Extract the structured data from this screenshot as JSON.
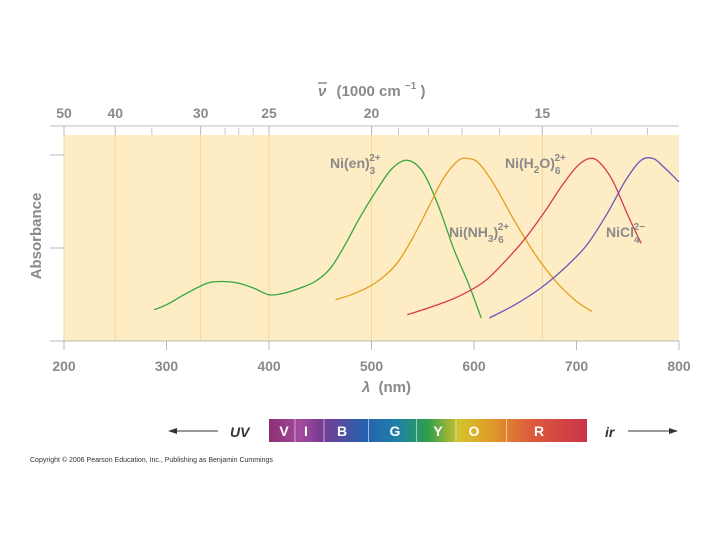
{
  "chart_data": {
    "type": "line",
    "ylabel": "Absorbance",
    "xlabel_lambda": "λ",
    "xlabel_unit": "(nm)",
    "xlim": [
      200,
      800
    ],
    "x_ticks": [
      "200",
      "300",
      "400",
      "500",
      "600",
      "700",
      "800"
    ],
    "top_axis": {
      "label_symbol": "ν",
      "label_prefix": "(1000 cm",
      "label_exp": "−1",
      "label_suffix": ")",
      "ticks": [
        {
          "wavenumber": 50,
          "label": "50"
        },
        {
          "wavenumber": 40,
          "label": "40"
        },
        {
          "wavenumber": 30,
          "label": "30"
        },
        {
          "wavenumber": 25,
          "label": "25"
        },
        {
          "wavenumber": 20,
          "label": "20"
        },
        {
          "wavenumber": 15,
          "label": "15"
        }
      ],
      "minor": [
        35,
        28,
        27,
        26,
        19,
        18,
        17,
        16,
        14,
        13
      ]
    },
    "series": [
      {
        "name": "Ni(en)3 2+",
        "base": "Ni(en)",
        "sub": "3",
        "sup": "2+",
        "color": "#33a843",
        "x": [
          288,
          300,
          320,
          340,
          355,
          370,
          385,
          400,
          415,
          430,
          445,
          460,
          475,
          490,
          505,
          520,
          535,
          550,
          565,
          580,
          595,
          607
        ],
        "y": [
          0.05,
          0.08,
          0.15,
          0.21,
          0.22,
          0.21,
          0.18,
          0.14,
          0.15,
          0.18,
          0.22,
          0.3,
          0.45,
          0.62,
          0.77,
          0.9,
          0.95,
          0.88,
          0.68,
          0.42,
          0.2,
          0.0
        ]
      },
      {
        "name": "Ni(NH3)6 2+",
        "base": "Ni(NH",
        "sub1": "3",
        "mid": ")",
        "sub": "6",
        "sup": "2+",
        "color": "#e0a020",
        "x": [
          465,
          480,
          495,
          510,
          525,
          540,
          555,
          570,
          585,
          595,
          605,
          620,
          640,
          660,
          680,
          700,
          715
        ],
        "y": [
          0.11,
          0.14,
          0.18,
          0.24,
          0.33,
          0.48,
          0.66,
          0.84,
          0.95,
          0.96,
          0.93,
          0.8,
          0.58,
          0.38,
          0.22,
          0.1,
          0.04
        ]
      },
      {
        "name": "Ni(H2O)6 2+",
        "base": "Ni(H",
        "sub1": "2",
        "mid": "O)",
        "sub": "6",
        "sup": "2+",
        "color": "#d63c4a",
        "x": [
          535,
          560,
          585,
          610,
          630,
          650,
          670,
          685,
          700,
          712,
          722,
          735,
          750,
          763
        ],
        "y": [
          0.02,
          0.07,
          0.13,
          0.22,
          0.34,
          0.48,
          0.65,
          0.79,
          0.91,
          0.96,
          0.94,
          0.83,
          0.62,
          0.45
        ]
      },
      {
        "name": "NiCl4 2-",
        "base": "NiCl",
        "sub": "4",
        "sup": "2−",
        "color": "#6a58b8",
        "x": [
          615,
          640,
          665,
          690,
          710,
          730,
          748,
          763,
          775,
          785,
          800
        ],
        "y": [
          0.0,
          0.08,
          0.18,
          0.31,
          0.44,
          0.63,
          0.83,
          0.95,
          0.96,
          0.91,
          0.82
        ]
      }
    ]
  },
  "spectrum": {
    "left_label": "UV",
    "right_label": "ir",
    "bands": [
      {
        "label": "V",
        "color": "#9b3c82"
      },
      {
        "label": "I",
        "color": "#7e3e8f"
      },
      {
        "label": "B",
        "color": "#2c62ad"
      },
      {
        "label": "G",
        "color": "#2a9a55"
      },
      {
        "label": "Y",
        "color": "#cdbd2c"
      },
      {
        "label": "O",
        "color": "#dc8b2c"
      },
      {
        "label": "R",
        "color": "#d33f46"
      }
    ]
  },
  "copyright": "Copyright © 2006 Pearson Education, Inc., Publishing as Benjamin Cummings"
}
